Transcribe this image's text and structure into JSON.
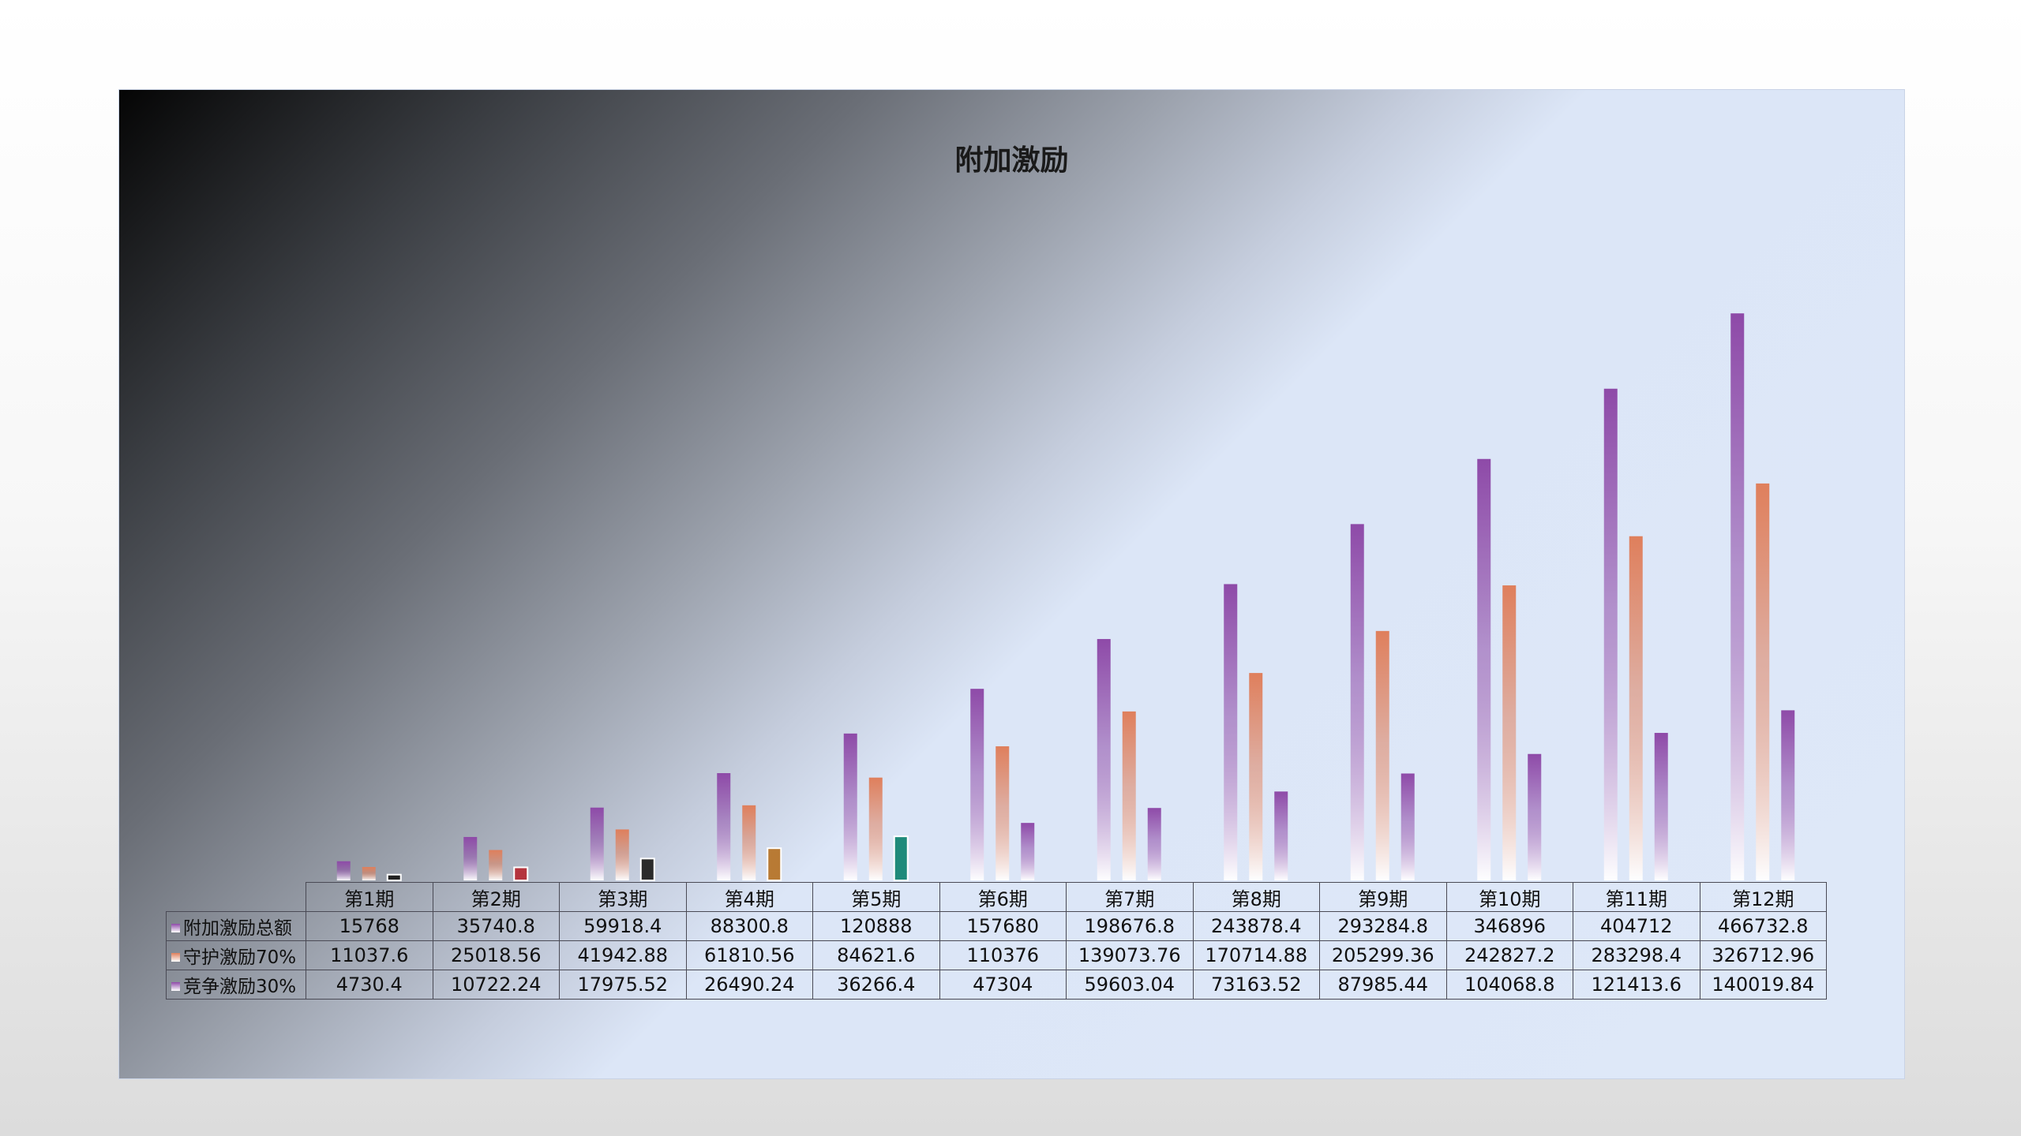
{
  "chart_data": {
    "type": "bar",
    "title": "附加激励",
    "categories": [
      "第1期",
      "第2期",
      "第3期",
      "第4期",
      "第5期",
      "第6期",
      "第7期",
      "第8期",
      "第9期",
      "第10期",
      "第11期",
      "第12期"
    ],
    "series": [
      {
        "name": "附加激励总额",
        "color": "#8e4aa8",
        "values": [
          15768,
          35740.8,
          59918.4,
          88300.8,
          120888,
          157680,
          198676.8,
          243878.4,
          293284.8,
          346896,
          404712,
          466732.8
        ],
        "labels": [
          "15768",
          "35740.8",
          "59918.4",
          "88300.8",
          "120888",
          "157680",
          "198676.8",
          "243878.4",
          "293284.8",
          "346896",
          "404712",
          "466732.8"
        ]
      },
      {
        "name": "守护激励70%",
        "color": "#df7f5c",
        "values": [
          11037.6,
          25018.56,
          41942.88,
          61810.56,
          84621.6,
          110376,
          139073.76,
          170714.88,
          205299.36,
          242827.2,
          283298.4,
          326712.96
        ],
        "labels": [
          "11037.6",
          "25018.56",
          "41942.88",
          "61810.56",
          "84621.6",
          "110376",
          "139073.76",
          "170714.88",
          "205299.36",
          "242827.2",
          "283298.4",
          "326712.96"
        ]
      },
      {
        "name": "竞争激励30%",
        "color": "#8e4aa8",
        "values": [
          4730.4,
          10722.24,
          17975.52,
          26490.24,
          36266.4,
          47304,
          59603.04,
          73163.52,
          87985.44,
          104068.8,
          121413.6,
          140019.84
        ],
        "labels": [
          "4730.4",
          "10722.24",
          "17975.52",
          "26490.24",
          "36266.4",
          "47304",
          "59603.04",
          "73163.52",
          "87985.44",
          "104068.8",
          "121413.6",
          "140019.84"
        ],
        "point_colors": [
          "#222222",
          "#b4343e",
          "#2b2b2b",
          "#b87a34",
          "#1f8a7a",
          null,
          null,
          null,
          null,
          null,
          null,
          null
        ]
      }
    ],
    "xlabel": "",
    "ylabel": "",
    "ylim": [
      0,
      500000
    ],
    "legend": "data-table",
    "grid": false
  }
}
